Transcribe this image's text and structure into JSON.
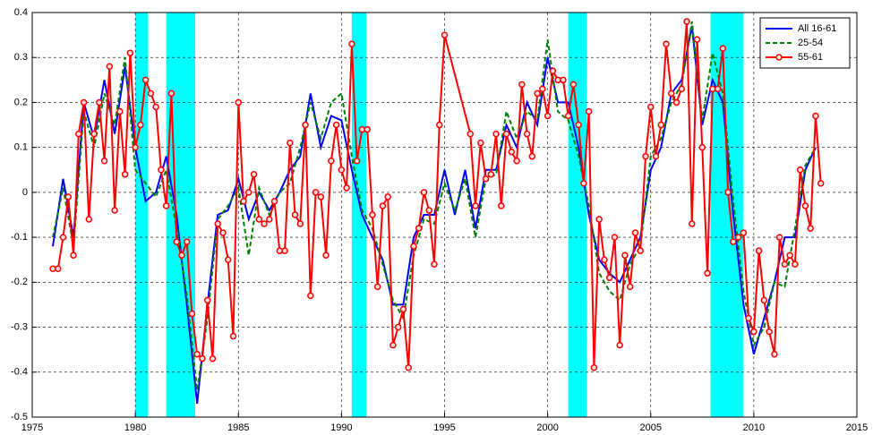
{
  "chart_data": {
    "type": "line",
    "x": [
      1976.0,
      1976.5,
      1977.0,
      1977.5,
      1978.0,
      1978.5,
      1979.0,
      1979.5,
      1980.0,
      1980.5,
      1981.0,
      1981.5,
      1982.0,
      1982.5,
      1983.0,
      1983.5,
      1984.0,
      1984.5,
      1985.0,
      1985.5,
      1986.0,
      1986.5,
      1987.0,
      1987.5,
      1988.0,
      1988.5,
      1989.0,
      1989.5,
      1990.0,
      1990.5,
      1991.0,
      1991.5,
      1992.0,
      1992.5,
      1993.0,
      1993.5,
      1994.0,
      1994.5,
      1995.0,
      1995.5,
      1996.0,
      1996.5,
      1997.0,
      1997.5,
      1998.0,
      1998.5,
      1999.0,
      1999.5,
      2000.0,
      2000.5,
      2001.0,
      2001.5,
      2002.0,
      2002.5,
      2003.0,
      2003.5,
      2004.0,
      2004.5,
      2005.0,
      2005.5,
      2006.0,
      2006.5,
      2007.0,
      2007.5,
      2008.0,
      2008.5,
      2009.0,
      2009.5,
      2010.0,
      2010.5,
      2011.0,
      2011.5,
      2012.0,
      2012.5,
      2013.0
    ],
    "series": [
      {
        "name": "All 16-61",
        "color": "#0000ff",
        "dash": false,
        "marker": false,
        "values": [
          -0.12,
          0.03,
          -0.1,
          0.2,
          0.12,
          0.25,
          0.13,
          0.28,
          0.1,
          -0.02,
          0.0,
          0.08,
          -0.05,
          -0.25,
          -0.47,
          -0.25,
          -0.05,
          -0.04,
          0.03,
          -0.06,
          0.0,
          -0.04,
          0.0,
          0.05,
          0.08,
          0.22,
          0.1,
          0.17,
          0.16,
          0.05,
          -0.05,
          -0.1,
          -0.15,
          -0.25,
          -0.25,
          -0.1,
          -0.05,
          -0.05,
          0.05,
          -0.05,
          0.05,
          -0.08,
          0.05,
          0.05,
          0.15,
          0.1,
          0.2,
          0.15,
          0.3,
          0.2,
          0.2,
          0.1,
          -0.05,
          -0.15,
          -0.18,
          -0.2,
          -0.15,
          -0.1,
          0.05,
          0.1,
          0.22,
          0.25,
          0.37,
          0.15,
          0.25,
          0.2,
          -0.05,
          -0.25,
          -0.36,
          -0.28,
          -0.2,
          -0.1,
          -0.1,
          0.05,
          0.1
        ]
      },
      {
        "name": "25-54",
        "color": "#008000",
        "dash": true,
        "marker": false,
        "values": [
          -0.1,
          0.01,
          -0.12,
          0.18,
          0.1,
          0.22,
          0.15,
          0.3,
          0.05,
          0.02,
          -0.01,
          0.05,
          -0.08,
          -0.23,
          -0.44,
          -0.28,
          -0.06,
          -0.03,
          0.01,
          -0.14,
          0.01,
          -0.05,
          0.0,
          0.02,
          0.1,
          0.2,
          0.12,
          0.2,
          0.22,
          0.08,
          -0.04,
          -0.08,
          -0.16,
          -0.24,
          -0.28,
          -0.14,
          -0.06,
          -0.07,
          0.02,
          -0.04,
          0.03,
          -0.1,
          0.03,
          0.04,
          0.18,
          0.12,
          0.18,
          0.16,
          0.34,
          0.18,
          0.16,
          0.08,
          -0.03,
          -0.18,
          -0.22,
          -0.24,
          -0.16,
          -0.12,
          0.08,
          0.12,
          0.2,
          0.24,
          0.38,
          0.16,
          0.31,
          0.22,
          -0.02,
          -0.22,
          -0.34,
          -0.3,
          -0.2,
          -0.21,
          -0.08,
          0.06,
          0.1
        ]
      },
      {
        "name": "55-61",
        "color": "#ff0000",
        "dash": false,
        "marker": true,
        "x": [
          1976.0,
          1976.25,
          1976.5,
          1976.75,
          1977.0,
          1977.25,
          1977.5,
          1977.75,
          1978.0,
          1978.25,
          1978.5,
          1978.75,
          1979.0,
          1979.25,
          1979.5,
          1979.75,
          1980.0,
          1980.25,
          1980.5,
          1980.75,
          1981.0,
          1981.25,
          1981.5,
          1981.75,
          1982.0,
          1982.25,
          1982.5,
          1982.75,
          1983.0,
          1983.25,
          1983.5,
          1983.75,
          1984.0,
          1984.25,
          1984.5,
          1984.75,
          1985.0,
          1985.25,
          1985.5,
          1985.75,
          1986.0,
          1986.25,
          1986.5,
          1986.75,
          1987.0,
          1987.25,
          1987.5,
          1987.75,
          1988.0,
          1988.25,
          1988.5,
          1988.75,
          1989.0,
          1989.25,
          1989.5,
          1989.75,
          1990.0,
          1990.25,
          1990.5,
          1990.75,
          1991.0,
          1991.25,
          1991.5,
          1991.75,
          1992.0,
          1992.25,
          1992.5,
          1992.75,
          1993.0,
          1993.25,
          1993.5,
          1993.75,
          1994.0,
          1994.25,
          1994.5,
          1994.75,
          1995.0,
          1996.25,
          1996.5,
          1996.75,
          1997.0,
          1997.25,
          1997.5,
          1997.75,
          1998.0,
          1998.25,
          1998.5,
          1998.75,
          1999.0,
          1999.25,
          1999.5,
          1999.75,
          2000.0,
          2000.25,
          2000.5,
          2000.75,
          2001.0,
          2001.25,
          2001.5,
          2001.75,
          2002.0,
          2002.25,
          2002.5,
          2002.75,
          2003.0,
          2003.25,
          2003.5,
          2003.75,
          2004.0,
          2004.25,
          2004.5,
          2004.75,
          2005.0,
          2005.25,
          2005.5,
          2005.75,
          2006.0,
          2006.25,
          2006.5,
          2006.75,
          2007.0,
          2007.25,
          2007.5,
          2007.75,
          2008.0,
          2008.25,
          2008.5,
          2008.75,
          2009.0,
          2009.25,
          2009.5,
          2009.75,
          2010.0,
          2010.25,
          2010.5,
          2010.75,
          2011.0,
          2011.25,
          2011.5,
          2011.75,
          2012.0,
          2012.25,
          2012.5,
          2012.75,
          2013.0,
          2013.25
        ],
        "values": [
          -0.17,
          -0.17,
          -0.1,
          -0.01,
          -0.14,
          0.13,
          0.2,
          -0.06,
          0.13,
          0.2,
          0.07,
          0.28,
          -0.04,
          0.18,
          0.04,
          0.31,
          0.1,
          0.15,
          0.25,
          0.22,
          0.19,
          0.05,
          -0.03,
          0.22,
          -0.11,
          -0.14,
          -0.11,
          -0.27,
          -0.36,
          -0.37,
          -0.24,
          -0.37,
          -0.07,
          -0.09,
          -0.15,
          -0.32,
          0.2,
          -0.02,
          0.0,
          0.04,
          -0.06,
          -0.07,
          -0.06,
          -0.02,
          -0.13,
          -0.13,
          0.11,
          -0.05,
          -0.07,
          0.15,
          -0.23,
          0.0,
          -0.01,
          -0.14,
          0.07,
          0.15,
          0.05,
          0.01,
          0.33,
          0.07,
          0.14,
          0.14,
          -0.05,
          -0.21,
          -0.03,
          -0.01,
          -0.34,
          -0.3,
          -0.26,
          -0.39,
          -0.12,
          -0.08,
          0.0,
          -0.04,
          -0.16,
          0.15,
          0.35,
          0.13,
          -0.03,
          0.11,
          0.03,
          0.04,
          0.13,
          -0.03,
          0.13,
          0.09,
          0.07,
          0.24,
          0.13,
          0.08,
          0.22,
          0.23,
          0.17,
          0.27,
          0.25,
          0.25,
          0.17,
          0.24,
          0.15,
          0.02,
          0.18,
          -0.39,
          -0.06,
          -0.15,
          -0.19,
          -0.1,
          -0.34,
          -0.14,
          -0.21,
          -0.09,
          -0.13,
          0.08,
          0.19,
          0.08,
          0.15,
          0.33,
          0.22,
          0.2,
          0.23,
          0.38,
          -0.07,
          0.34,
          0.1,
          -0.18,
          0.23,
          0.23,
          0.32,
          0.0,
          -0.11,
          -0.1,
          -0.09,
          -0.28,
          -0.31,
          -0.13,
          -0.24,
          -0.31,
          -0.36,
          -0.1,
          -0.16,
          -0.14,
          -0.16,
          0.05,
          -0.03,
          -0.08,
          0.17,
          0.02
        ]
      }
    ],
    "shaded_regions": [
      [
        1980.0,
        1980.6
      ],
      [
        1981.5,
        1982.9
      ],
      [
        1990.5,
        1991.2
      ],
      [
        2001.0,
        2001.9
      ],
      [
        2007.9,
        2009.5
      ]
    ],
    "shade_color": "#00ffff",
    "xlim": [
      1975,
      2015
    ],
    "xticks": [
      1975,
      1980,
      1985,
      1990,
      1995,
      2000,
      2005,
      2010,
      2015
    ],
    "ylim": [
      -0.5,
      0.4
    ],
    "yticks": [
      -0.5,
      -0.4,
      -0.3,
      -0.2,
      -0.1,
      0,
      0.1,
      0.2,
      0.3,
      0.4
    ],
    "grid": true,
    "legend": "upper right"
  }
}
